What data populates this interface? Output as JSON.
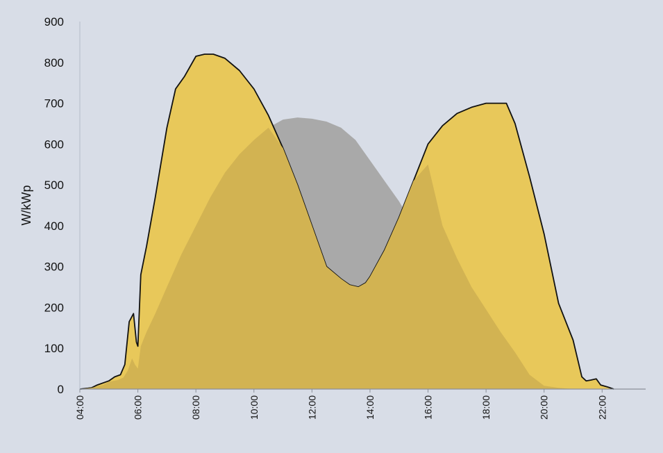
{
  "chart_data": {
    "type": "area",
    "title": "",
    "xlabel": "",
    "ylabel": "W/kWp",
    "x_unit": "hour",
    "xlim": [
      4,
      23.5
    ],
    "ylim": [
      0,
      900
    ],
    "y_ticks": [
      0,
      100,
      200,
      300,
      400,
      500,
      600,
      700,
      800,
      900
    ],
    "x_ticks": [
      4,
      6,
      8,
      10,
      12,
      14,
      16,
      18,
      20,
      22
    ],
    "x_tick_labels": [
      "04:00",
      "06:00",
      "08:00",
      "10:00",
      "12:00",
      "14:00",
      "16:00",
      "18:00",
      "20:00",
      "22:00"
    ],
    "grid": false,
    "legend": "none",
    "series": [
      {
        "color": "#a9a9a9",
        "line": false,
        "x": [
          4.0,
          4.4,
          4.8,
          5.0,
          5.3,
          5.5,
          5.65,
          5.8,
          5.9,
          6.0,
          6.1,
          6.3,
          6.6,
          7.0,
          7.5,
          8.0,
          8.5,
          9.0,
          9.5,
          10.0,
          10.5,
          11.0,
          11.5,
          12.0,
          12.5,
          13.0,
          13.5,
          14.0,
          14.5,
          15.0,
          15.5,
          16.0,
          16.5,
          17.0,
          17.5,
          18.0,
          18.5,
          19.0,
          19.5,
          20.0,
          20.5,
          21.0,
          21.5,
          22.0,
          22.3,
          22.5
        ],
        "y": [
          0,
          3,
          10,
          18,
          22,
          28,
          45,
          75,
          60,
          50,
          110,
          140,
          185,
          250,
          330,
          400,
          470,
          530,
          575,
          610,
          640,
          660,
          665,
          662,
          655,
          640,
          610,
          560,
          510,
          460,
          400,
          320,
          250,
          195,
          140,
          90,
          35,
          8,
          3,
          0,
          0,
          0,
          0,
          0,
          0,
          0
        ]
      },
      {
        "color": "#e8c85a",
        "line": true,
        "x": [
          4.0,
          4.4,
          4.6,
          5.0,
          5.2,
          5.4,
          5.55,
          5.7,
          5.85,
          5.95,
          6.0,
          6.1,
          6.3,
          6.6,
          7.0,
          7.3,
          7.6,
          8.0,
          8.3,
          8.6,
          9.0,
          9.5,
          10.0,
          10.5,
          11.0,
          11.5,
          12.0,
          12.5,
          13.0,
          13.3,
          13.6,
          13.85,
          14.0,
          14.5,
          15.0,
          15.5,
          16.0,
          16.5,
          17.0,
          17.5,
          18.0,
          18.5,
          18.7,
          19.0,
          19.5,
          20.0,
          20.5,
          21.0,
          21.3,
          21.45,
          21.6,
          21.8,
          21.95,
          22.2,
          22.4
        ],
        "y": [
          0,
          3,
          10,
          20,
          30,
          35,
          60,
          165,
          185,
          115,
          105,
          280,
          350,
          470,
          640,
          735,
          765,
          815,
          820,
          820,
          810,
          780,
          735,
          670,
          590,
          500,
          400,
          300,
          270,
          255,
          250,
          260,
          275,
          340,
          420,
          510,
          600,
          645,
          675,
          690,
          700,
          700,
          700,
          650,
          520,
          380,
          210,
          120,
          30,
          20,
          22,
          25,
          10,
          5,
          0
        ]
      },
      {
        "color": "#d2b352",
        "line": false,
        "x": [
          4.0,
          4.4,
          4.8,
          5.0,
          5.3,
          5.5,
          5.65,
          5.8,
          5.9,
          6.0,
          6.1,
          6.3,
          6.6,
          7.0,
          7.5,
          8.0,
          8.5,
          9.0,
          9.5,
          10.0,
          10.5,
          11.0,
          11.5,
          12.0,
          12.5,
          13.0,
          13.3,
          13.6,
          13.85,
          14.0,
          14.5,
          15.0,
          15.5,
          16.0,
          16.5,
          17.0,
          17.5,
          18.0,
          18.5,
          19.0,
          19.5,
          20.0,
          20.5,
          21.0,
          21.3,
          21.6,
          22.0,
          22.3,
          22.5
        ],
        "y": [
          0,
          3,
          10,
          18,
          22,
          28,
          45,
          75,
          60,
          50,
          105,
          140,
          185,
          250,
          330,
          400,
          470,
          530,
          575,
          610,
          640,
          590,
          500,
          400,
          300,
          270,
          255,
          250,
          260,
          275,
          340,
          420,
          510,
          550,
          400,
          320,
          250,
          195,
          140,
          90,
          35,
          8,
          3,
          0,
          0,
          0,
          0,
          0,
          0
        ]
      }
    ]
  }
}
